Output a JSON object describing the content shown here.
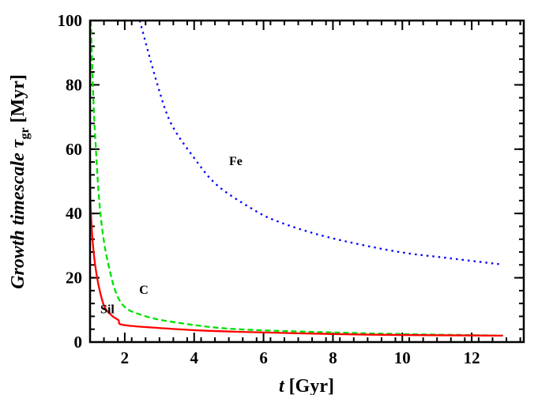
{
  "chart_data": {
    "type": "line",
    "xlabel_italic": "t",
    "xlabel_rest": " [Gyr]",
    "ylabel_italic": "Growth timescale τ",
    "ylabel_sub": "gr",
    "ylabel_rest": " [Myr]",
    "xlim": [
      1,
      13.5
    ],
    "ylim": [
      0,
      100
    ],
    "x_ticks": [
      2,
      4,
      6,
      8,
      10,
      12
    ],
    "y_ticks": [
      0,
      20,
      40,
      60,
      80,
      100
    ],
    "x_minor_step": 0.4,
    "y_minor_step": 4,
    "grid": false,
    "series": [
      {
        "name": "Fe",
        "color": "#0000ff",
        "style": "dotted",
        "x": [
          2.43,
          2.96,
          3.34,
          3.95,
          4.64,
          5.63,
          6.39,
          7.83,
          9.81,
          11.34,
          12.9
        ],
        "y": [
          100,
          79.4,
          67.9,
          58,
          49,
          41.7,
          37.6,
          32.7,
          28.2,
          26.1,
          24.1
        ],
        "label_at": [
          5.2,
          55
        ]
      },
      {
        "name": "C",
        "color": "#00e000",
        "style": "dashed",
        "x": [
          1.02,
          1.08,
          1.14,
          1.29,
          1.52,
          1.89,
          2.58,
          3.73,
          5.25,
          8,
          10,
          12.9
        ],
        "y": [
          100,
          80,
          65.4,
          40.9,
          24.5,
          12.3,
          8.1,
          5.7,
          4,
          3,
          2.5,
          2
        ],
        "label_at": [
          2.55,
          15
        ]
      },
      {
        "name": "Sil",
        "color": "#ff0000",
        "style": "solid",
        "x": [
          1.0,
          1.02,
          1.14,
          1.37,
          1.6,
          1.82,
          1.86,
          2.2,
          2.96,
          4,
          5.25,
          8,
          10,
          12.9
        ],
        "y": [
          56,
          40.9,
          24.5,
          12.3,
          8.5,
          6.8,
          5.6,
          5.0,
          4.4,
          3.7,
          3.2,
          2.5,
          2.2,
          2
        ],
        "label_at": [
          1.5,
          9
        ]
      }
    ]
  }
}
